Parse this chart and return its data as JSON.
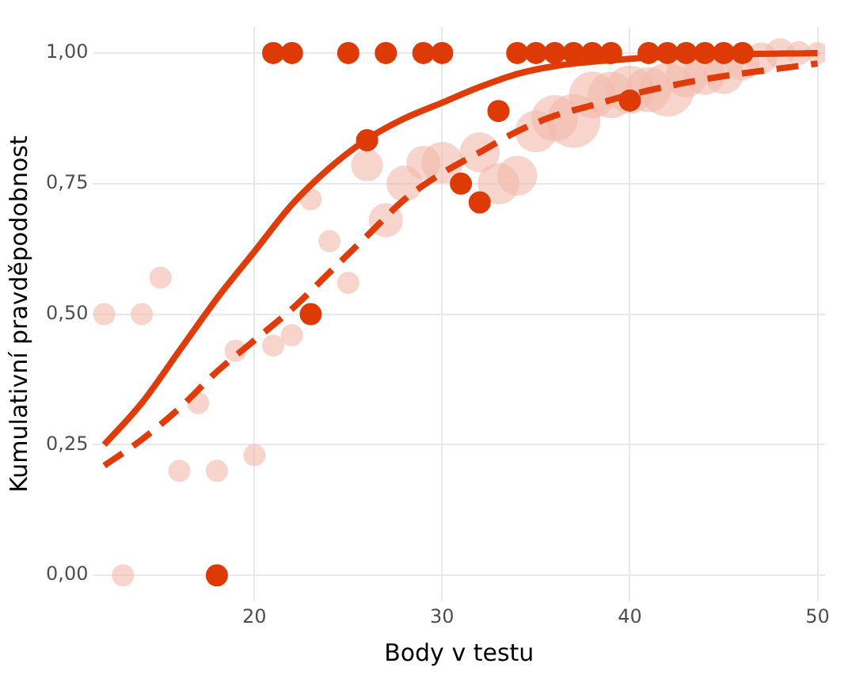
{
  "chart_data": {
    "type": "scatter",
    "xlabel": "Body v testu",
    "ylabel": "Kumulativní pravděpodobnost",
    "xlim": [
      11.4,
      50.4
    ],
    "ylim": [
      -0.05,
      1.05
    ],
    "xticks": [
      20,
      30,
      40,
      50
    ],
    "yticks": [
      {
        "value": 0,
        "label": "0,00"
      },
      {
        "value": 0.25,
        "label": "0,25"
      },
      {
        "value": 0.5,
        "label": "0,50"
      },
      {
        "value": 0.75,
        "label": "0,75"
      },
      {
        "value": 1,
        "label": "1,00"
      }
    ],
    "grid": true,
    "legend": false,
    "marker": "circle",
    "series": [
      {
        "type": "bubble",
        "color": "#f3b9aa",
        "x": [
          12,
          13,
          14,
          15,
          16,
          17,
          18,
          19,
          20,
          21,
          22,
          23,
          24,
          25,
          26,
          27,
          28,
          29,
          30,
          31,
          32,
          33,
          34,
          35,
          36,
          37,
          38,
          39,
          40,
          41,
          42,
          43,
          44,
          45,
          46,
          47,
          48,
          49,
          50
        ],
        "values": [
          0.5,
          0,
          0.5,
          0.57,
          0.2,
          0.33,
          0.2,
          0.43,
          0.23,
          0.44,
          0.46,
          0.72,
          0.64,
          0.56,
          0.785,
          0.68,
          0.75,
          0.79,
          0.79,
          null,
          0.81,
          0.75,
          0.765,
          0.85,
          0.875,
          0.87,
          0.92,
          0.92,
          0.93,
          0.93,
          0.93,
          0.955,
          0.96,
          0.96,
          0.98,
          0.99,
          1,
          1,
          1
        ],
        "sizes": [
          0.17,
          0.17,
          0.17,
          0.17,
          0.17,
          0.17,
          0.17,
          0.17,
          0.17,
          0.17,
          0.17,
          0.17,
          0.17,
          0.17,
          0.35,
          0.4,
          0.45,
          0.4,
          0.6,
          null,
          0.55,
          0.6,
          0.55,
          0.6,
          0.75,
          1,
          0.75,
          0.75,
          0.8,
          0.7,
          1,
          0.6,
          0.6,
          0.55,
          0.4,
          0.35,
          0.3,
          0.2,
          0.17
        ]
      },
      {
        "type": "line",
        "color": "#e03c0a",
        "line_style": "solid",
        "marker": "none",
        "x": [
          12,
          14,
          16,
          18,
          20,
          22,
          24,
          26,
          28,
          30,
          32,
          34,
          36,
          40,
          45,
          50
        ],
        "values": [
          0.25,
          0.33,
          0.43,
          0.53,
          0.62,
          0.71,
          0.78,
          0.835,
          0.875,
          0.905,
          0.935,
          0.96,
          0.975,
          0.989,
          0.997,
          1.0
        ]
      },
      {
        "type": "line",
        "color": "#e03c0a",
        "line_style": "dashed",
        "marker": "none",
        "x": [
          12,
          14,
          16,
          18,
          20,
          22,
          24,
          26,
          28,
          30,
          32,
          34,
          36,
          38,
          40,
          44,
          50
        ],
        "values": [
          0.21,
          0.26,
          0.32,
          0.39,
          0.45,
          0.51,
          0.58,
          0.65,
          0.72,
          0.77,
          0.81,
          0.85,
          0.88,
          0.9,
          0.92,
          0.95,
          0.98
        ]
      },
      {
        "color": "#dd3a06",
        "x": [
          18,
          21,
          22,
          23,
          25,
          26,
          27,
          29,
          30,
          31,
          32,
          33,
          34,
          35,
          36,
          37,
          38,
          39,
          40,
          41,
          42,
          43,
          44,
          45,
          46
        ],
        "values": [
          0,
          1,
          1,
          0.5,
          1,
          0.833,
          1,
          1,
          1,
          0.75,
          0.714,
          0.889,
          1,
          1,
          1,
          1,
          1,
          1,
          0.909,
          1,
          1,
          1,
          1,
          1,
          1
        ]
      }
    ]
  }
}
